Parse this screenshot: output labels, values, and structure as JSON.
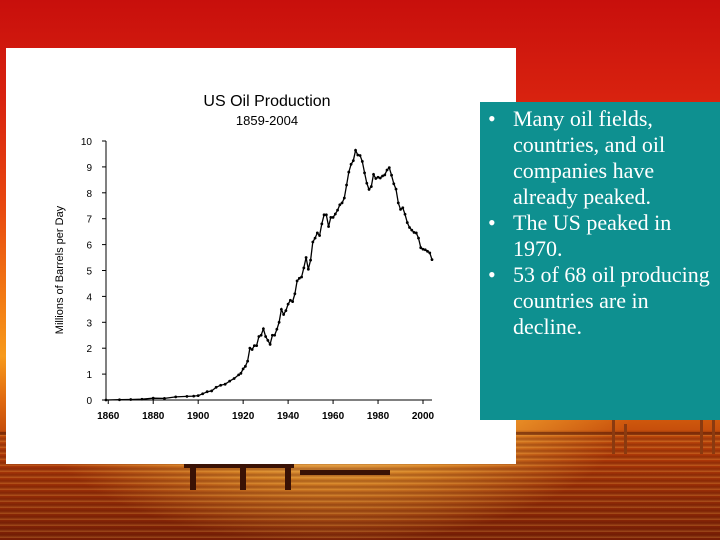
{
  "background": {
    "description_colors": [
      "#c80f0c",
      "#f27a14",
      "#7a1e05"
    ]
  },
  "bullets": [
    "Many oil fields, countries, and oil companies have already peaked.",
    "The US peaked in 1970.",
    "53 of 68 oil producing countries are in decline."
  ],
  "chart_data": {
    "type": "line",
    "title": "US Oil Production",
    "subtitle": "1859-2004",
    "xlabel": "",
    "ylabel": "Millions of Barrels per Day",
    "xlim": [
      1859,
      2004
    ],
    "ylim": [
      0,
      10
    ],
    "x_ticks": [
      1860,
      1880,
      1900,
      1920,
      1940,
      1960,
      1980,
      2000
    ],
    "y_ticks": [
      0,
      1,
      2,
      3,
      4,
      5,
      6,
      7,
      8,
      9,
      10
    ],
    "grid": false,
    "legend": "none",
    "series": [
      {
        "color": "#000000",
        "x": [
          1859,
          1865,
          1870,
          1875,
          1880,
          1885,
          1890,
          1895,
          1898,
          1900,
          1902,
          1904,
          1906,
          1908,
          1910,
          1912,
          1914,
          1916,
          1918,
          1919,
          1920,
          1921,
          1922,
          1923,
          1924,
          1925,
          1926,
          1927,
          1928,
          1929,
          1930,
          1931,
          1932,
          1933,
          1934,
          1935,
          1936,
          1937,
          1938,
          1939,
          1940,
          1941,
          1942,
          1943,
          1944,
          1945,
          1946,
          1947,
          1948,
          1949,
          1950,
          1951,
          1952,
          1953,
          1954,
          1955,
          1956,
          1957,
          1958,
          1959,
          1960,
          1961,
          1962,
          1963,
          1964,
          1965,
          1966,
          1967,
          1968,
          1969,
          1970,
          1971,
          1972,
          1973,
          1974,
          1975,
          1976,
          1977,
          1978,
          1979,
          1980,
          1981,
          1982,
          1983,
          1984,
          1985,
          1986,
          1987,
          1988,
          1989,
          1990,
          1991,
          1992,
          1993,
          1994,
          1995,
          1996,
          1997,
          1998,
          1999,
          2000,
          2001,
          2002,
          2003,
          2004
        ],
        "y": [
          0.0,
          0.01,
          0.02,
          0.03,
          0.07,
          0.06,
          0.12,
          0.14,
          0.15,
          0.17,
          0.24,
          0.32,
          0.35,
          0.49,
          0.57,
          0.61,
          0.73,
          0.83,
          0.97,
          1.03,
          1.2,
          1.3,
          1.5,
          2.0,
          1.95,
          2.1,
          2.1,
          2.45,
          2.5,
          2.75,
          2.45,
          2.3,
          2.15,
          2.5,
          2.5,
          2.73,
          3.0,
          3.5,
          3.3,
          3.45,
          3.7,
          3.85,
          3.8,
          4.1,
          4.6,
          4.7,
          4.75,
          5.1,
          5.5,
          5.05,
          5.4,
          6.1,
          6.25,
          6.45,
          6.35,
          6.8,
          7.15,
          7.15,
          6.7,
          7.05,
          7.05,
          7.18,
          7.33,
          7.54,
          7.61,
          7.8,
          8.3,
          8.8,
          9.1,
          9.24,
          9.64,
          9.46,
          9.44,
          9.21,
          8.77,
          8.37,
          8.13,
          8.24,
          8.71,
          8.55,
          8.6,
          8.57,
          8.65,
          8.69,
          8.88,
          8.97,
          8.68,
          8.35,
          8.14,
          7.61,
          7.36,
          7.42,
          7.17,
          6.85,
          6.66,
          6.56,
          6.47,
          6.45,
          6.25,
          5.88,
          5.82,
          5.8,
          5.74,
          5.68,
          5.42
        ]
      }
    ]
  }
}
